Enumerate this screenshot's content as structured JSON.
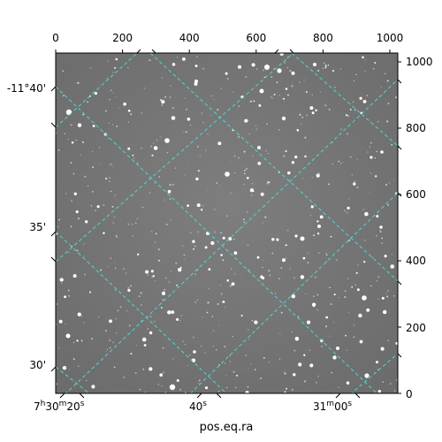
{
  "figure": {
    "xlabel": "pos.eq.ra",
    "colors": {
      "grid": "#4fd6d6",
      "sky_background": "#7a7a7a",
      "frame": "#000000",
      "star": "#ffffff"
    },
    "top_axis": {
      "ticks": [
        0,
        200,
        400,
        600,
        800,
        1000
      ],
      "labels": [
        "0",
        "200",
        "400",
        "600",
        "800",
        "1000"
      ]
    },
    "right_axis": {
      "ticks": [
        0,
        200,
        400,
        600,
        800,
        1000
      ],
      "labels": [
        "0",
        "200",
        "400",
        "600",
        "800",
        "1000"
      ]
    },
    "left_axis": {
      "labels": [
        "-11°40'",
        "35'",
        "30'"
      ]
    },
    "bottom_axis": {
      "labels": [
        "7h30m20s",
        "40s",
        "31m00s"
      ],
      "label_parts": [
        {
          "main": "7",
          "sup1": "h",
          "mid": "30",
          "sup2": "m",
          "tail": "20",
          "sup3": "s"
        },
        {
          "main": "40",
          "sup1": "s",
          "mid": "",
          "sup2": "",
          "tail": "",
          "sup3": ""
        },
        {
          "main": "31",
          "sup1": "m",
          "mid": "00",
          "sup2": "s",
          "tail": "",
          "sup3": ""
        }
      ]
    }
  }
}
